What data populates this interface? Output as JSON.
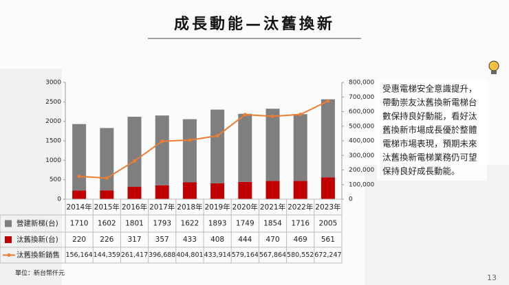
{
  "chart_data": {
    "type": "bar",
    "title": "成長動能—汰舊換新",
    "categories": [
      "2014年",
      "2015年",
      "2016年",
      "2017年",
      "2018年",
      "2019年",
      "2020年",
      "2021年",
      "2022年",
      "2023年"
    ],
    "series": [
      {
        "name": "營建新梯(台)",
        "color": "#7f7f7f",
        "values": [
          1710,
          1602,
          1801,
          1793,
          1622,
          1893,
          1749,
          1854,
          1716,
          2005
        ]
      },
      {
        "name": "汰舊換新(台)",
        "color": "#c00000",
        "values": [
          220,
          226,
          317,
          357,
          433,
          408,
          444,
          470,
          469,
          561
        ]
      },
      {
        "name": "汰舊換新銷售",
        "color": "#ed7d31",
        "type": "line",
        "axis": "y2",
        "values": [
          156164,
          144359,
          261417,
          396688,
          404801,
          433914,
          579164,
          567864,
          580552,
          672247
        ],
        "value_labels": [
          "156,164",
          "144,359",
          "261,417",
          "396,688",
          "404,801",
          "433,914",
          "579,164",
          "567,864",
          "580,552",
          "672,247"
        ]
      }
    ],
    "stacked": true,
    "ylim": [
      0,
      3000
    ],
    "yticks": [
      0,
      500,
      1000,
      1500,
      2000,
      2500,
      3000
    ],
    "y2lim": [
      0,
      800000
    ],
    "y2ticks": [
      0,
      {
        "value": 100000,
        "label": "100,000"
      },
      {
        "value": 200000,
        "label": "200,000"
      },
      {
        "value": 300000,
        "label": "300,000"
      },
      {
        "value": 400000,
        "label": "400,000"
      },
      {
        "value": 500000,
        "label": "500,000"
      },
      {
        "value": 600000,
        "label": "600,000"
      },
      {
        "value": 700000,
        "label": "700,000"
      },
      {
        "value": 800000,
        "label": "800,000"
      }
    ],
    "grid": false
  },
  "commentary": [
    "受惠電梯安全意識提升，",
    "帶動崇友汰舊換新電梯台",
    "數保持良好動能，看好汰",
    "舊換新市場成長優於整體",
    "電梯市場表現，預期未來",
    "汰舊換新電梯業務仍可望",
    "保持良好成長動能。"
  ],
  "unit_note": "單位：新台幣仟元",
  "page_number": "13"
}
